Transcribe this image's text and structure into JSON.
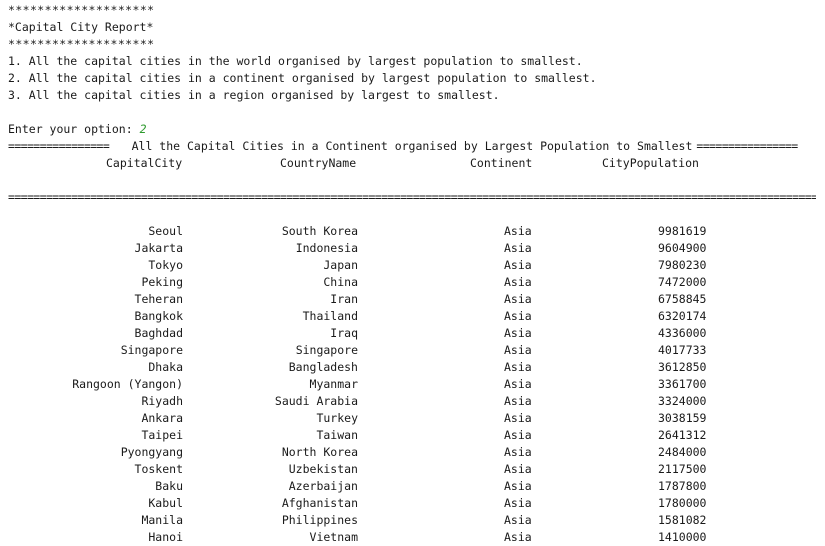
{
  "report": {
    "stars_top": "********************",
    "title": "*Capital City Report*",
    "stars_bottom": "********************",
    "menu": [
      "1. All the capital cities in the world organised by largest population to smallest.",
      "2. All the capital cities in a continent organised by largest population to smallest.",
      "3. All the capital cities in a region organised by largest to smallest."
    ],
    "prompt": "Enter your option: ",
    "option_value": "2"
  },
  "table": {
    "rule_left": "================",
    "heading": "All the Capital Cities in a Continent organised by Largest Population to Smallest",
    "rule_right": "================",
    "columns": [
      "CapitalCity",
      "CountryName",
      "Continent",
      "CityPopulation"
    ],
    "separator": "==============================================================================================================================================",
    "rows": [
      [
        "Seoul",
        "South Korea",
        "Asia",
        "9981619"
      ],
      [
        "Jakarta",
        "Indonesia",
        "Asia",
        "9604900"
      ],
      [
        "Tokyo",
        "Japan",
        "Asia",
        "7980230"
      ],
      [
        "Peking",
        "China",
        "Asia",
        "7472000"
      ],
      [
        "Teheran",
        "Iran",
        "Asia",
        "6758845"
      ],
      [
        "Bangkok",
        "Thailand",
        "Asia",
        "6320174"
      ],
      [
        "Baghdad",
        "Iraq",
        "Asia",
        "4336000"
      ],
      [
        "Singapore",
        "Singapore",
        "Asia",
        "4017733"
      ],
      [
        "Dhaka",
        "Bangladesh",
        "Asia",
        "3612850"
      ],
      [
        "Rangoon (Yangon)",
        "Myanmar",
        "Asia",
        "3361700"
      ],
      [
        "Riyadh",
        "Saudi Arabia",
        "Asia",
        "3324000"
      ],
      [
        "Ankara",
        "Turkey",
        "Asia",
        "3038159"
      ],
      [
        "Taipei",
        "Taiwan",
        "Asia",
        "2641312"
      ],
      [
        "Pyongyang",
        "North Korea",
        "Asia",
        "2484000"
      ],
      [
        "Toskent",
        "Uzbekistan",
        "Asia",
        "2117500"
      ],
      [
        "Baku",
        "Azerbaijan",
        "Asia",
        "1787800"
      ],
      [
        "Kabul",
        "Afghanistan",
        "Asia",
        "1780000"
      ],
      [
        "Manila",
        "Philippines",
        "Asia",
        "1581082"
      ],
      [
        "Hanoi",
        "Vietnam",
        "Asia",
        "1410000"
      ]
    ]
  }
}
